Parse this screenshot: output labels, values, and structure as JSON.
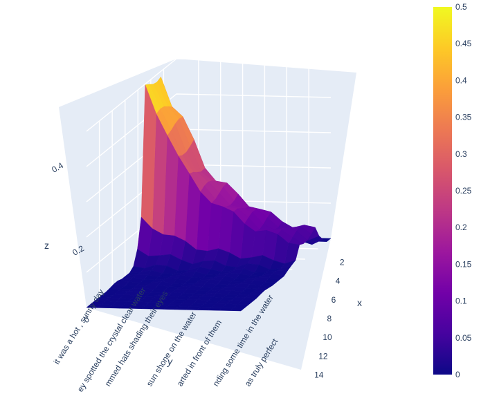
{
  "chart_data": {
    "type": "surface3d",
    "colorscale": "plasma",
    "x_axis": {
      "title": "x",
      "ticks": [
        "2",
        "4",
        "6",
        "8",
        "10",
        "12",
        "14"
      ],
      "range": [
        1,
        15
      ]
    },
    "y_axis": {
      "title": "y",
      "ticks": [
        "it was a hot , sunny day",
        "ey spotted the crystal clear water",
        "mmed hats shading their eyes",
        "sun shone on the water",
        "arted in front of them",
        "nding some time in the water",
        "as truly perfect"
      ]
    },
    "z_axis": {
      "title": "z",
      "ticks": [
        "0",
        "0.2",
        "0.4"
      ],
      "range": [
        0,
        0.5
      ]
    },
    "colorbar": {
      "ticks": [
        "0",
        "0.05",
        "0.1",
        "0.15",
        "0.2",
        "0.25",
        "0.3",
        "0.35",
        "0.4",
        "0.45",
        "0.5"
      ],
      "min": 0,
      "max": 0.5
    },
    "peak_profile": [
      0.49,
      0.42,
      0.38,
      0.32,
      0.26,
      0.22,
      0.2,
      0.18,
      0.16,
      0.14,
      0.12,
      0.11,
      0.1,
      0.09,
      0.08
    ]
  }
}
